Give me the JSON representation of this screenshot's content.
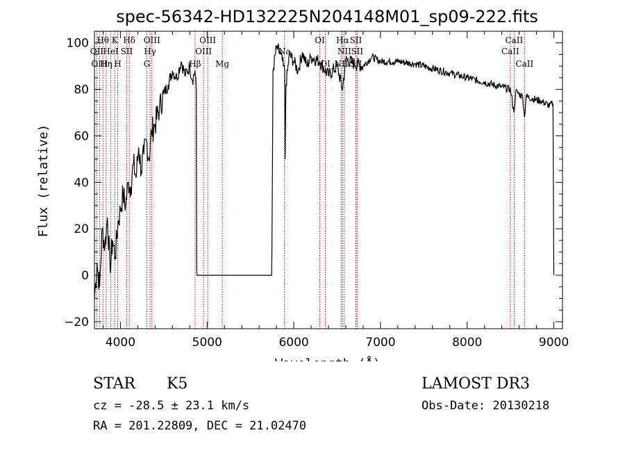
{
  "chart_data": {
    "type": "line",
    "title": "spec-56342-HD132225N204148M01_sp09-222.fits",
    "xlabel": "Wavelength (Å)",
    "ylabel": "Flux (relative)",
    "xlim": [
      3700,
      9100
    ],
    "ylim": [
      -23,
      105
    ],
    "x_ticks": [
      4000,
      5000,
      6000,
      7000,
      8000,
      9000
    ],
    "y_ticks": [
      -20,
      0,
      20,
      40,
      60,
      80,
      100
    ],
    "series": [
      {
        "name": "flux",
        "x": [
          3700,
          3730,
          3760,
          3790,
          3820,
          3850,
          3880,
          3910,
          3940,
          3970,
          4000,
          4030,
          4060,
          4090,
          4120,
          4150,
          4180,
          4210,
          4240,
          4270,
          4300,
          4330,
          4360,
          4400,
          4450,
          4500,
          4550,
          4600,
          4650,
          4700,
          4750,
          4800,
          4830,
          4860,
          4875,
          4880,
          4885,
          5000,
          5500,
          5745,
          5748,
          5760,
          5800,
          5850,
          5880,
          5895,
          5900,
          5910,
          5950,
          6000,
          6050,
          6100,
          6150,
          6200,
          6300,
          6400,
          6500,
          6563,
          6600,
          6700,
          6800,
          6900,
          7000,
          7200,
          7400,
          7600,
          7800,
          8000,
          8200,
          8400,
          8500,
          8540,
          8560,
          8600,
          8640,
          8662,
          8680,
          8750,
          8850,
          8950,
          8990,
          9000
        ],
        "y": [
          -10,
          5,
          -5,
          20,
          12,
          25,
          3,
          15,
          8,
          22,
          28,
          35,
          30,
          40,
          38,
          48,
          42,
          55,
          45,
          52,
          58,
          50,
          62,
          65,
          72,
          78,
          82,
          88,
          85,
          92,
          86,
          90,
          84,
          88,
          80,
          2,
          0,
          0,
          0,
          0,
          12,
          88,
          98,
          95,
          90,
          88,
          50,
          82,
          95,
          92,
          88,
          96,
          90,
          94,
          92,
          86,
          90,
          80,
          93,
          91,
          90,
          94,
          92,
          92,
          91,
          89,
          87,
          85,
          83,
          81,
          80,
          70,
          79,
          78,
          77,
          68,
          77,
          76,
          75,
          73,
          74,
          0
        ]
      }
    ],
    "line_markers": [
      {
        "label": "Hθ",
        "wavelength": 3798,
        "row": 1
      },
      {
        "label": "OII",
        "wavelength": 3727,
        "row": 2
      },
      {
        "label": "OIII",
        "wavelength": 3760,
        "row": 3
      },
      {
        "label": "K",
        "wavelength": 3934,
        "row": 1
      },
      {
        "label": "HeI",
        "wavelength": 3889,
        "row": 2
      },
      {
        "label": "Hη",
        "wavelength": 3835,
        "row": 3
      },
      {
        "label": "H",
        "wavelength": 3969,
        "row": 3
      },
      {
        "label": "SII",
        "wavelength": 4072,
        "row": 2
      },
      {
        "label": "Hδ",
        "wavelength": 4102,
        "row": 1
      },
      {
        "label": "OIII",
        "wavelength": 4363,
        "row": 1
      },
      {
        "label": "Hγ",
        "wavelength": 4341,
        "row": 2
      },
      {
        "label": "G",
        "wavelength": 4305,
        "row": 3
      },
      {
        "label": "Hβ",
        "wavelength": 4861,
        "row": 3
      },
      {
        "label": "OIII",
        "wavelength": 5007,
        "row": 1
      },
      {
        "label": "OIII",
        "wavelength": 4959,
        "row": 2
      },
      {
        "label": "Mg",
        "wavelength": 5175,
        "row": 3
      },
      {
        "label": "Na",
        "wavelength": 5893,
        "row": 2
      },
      {
        "label": "OI",
        "wavelength": 6300,
        "row": 1
      },
      {
        "label": "OI",
        "wavelength": 6364,
        "row": 3
      },
      {
        "label": "Hα",
        "wavelength": 6563,
        "row": 1
      },
      {
        "label": "NII",
        "wavelength": 6583,
        "row": 2
      },
      {
        "label": "SII",
        "wavelength": 6716,
        "row": 1
      },
      {
        "label": "SII",
        "wavelength": 6731,
        "row": 2
      },
      {
        "label": "NII",
        "wavelength": 6548,
        "row": 3
      },
      {
        "label": "SII",
        "wavelength": 6716,
        "row": 3
      },
      {
        "label": "CaII",
        "wavelength": 8542,
        "row": 1
      },
      {
        "label": "CaII",
        "wavelength": 8498,
        "row": 2
      },
      {
        "label": "CaII",
        "wavelength": 8662,
        "row": 3
      }
    ]
  },
  "info": {
    "object_class": "STAR",
    "subclass": "K5",
    "survey": "LAMOST DR3",
    "redshift": "cz = -28.5 ± 23.1 km/s",
    "obs_date": "Obs-Date: 20130218",
    "coords": "RA = 201.22809, DEC =  21.02470"
  }
}
